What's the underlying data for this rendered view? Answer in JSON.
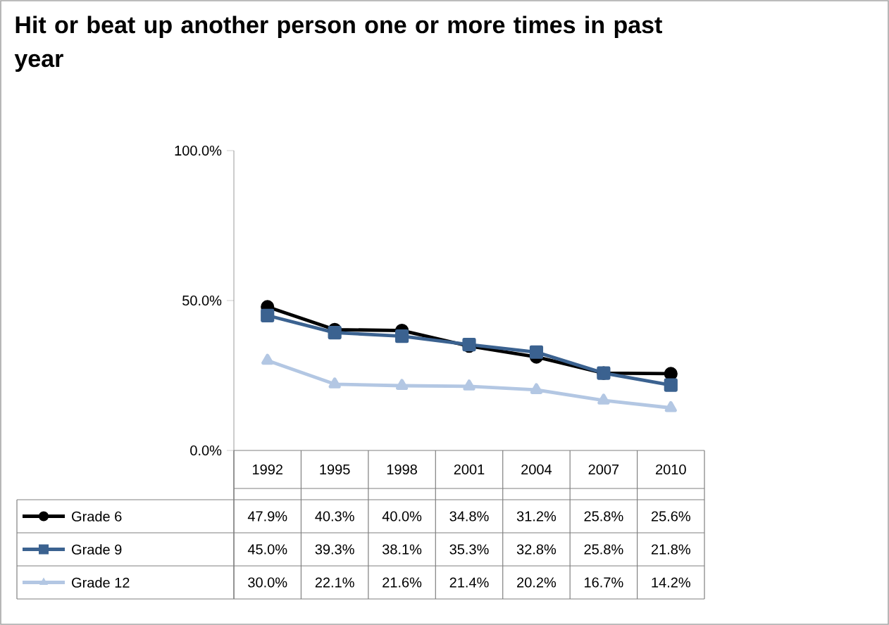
{
  "chart_data": {
    "type": "line",
    "title": "Hit or beat up another person one or more times in past year",
    "categories": [
      "1992",
      "1995",
      "1998",
      "2001",
      "2004",
      "2007",
      "2010"
    ],
    "series": [
      {
        "name": "Grade 6",
        "color": "#000000",
        "marker": "circle",
        "values": [
          47.9,
          40.3,
          40.0,
          34.8,
          31.2,
          25.8,
          25.6
        ],
        "value_labels": [
          "47.9%",
          "40.3%",
          "40.0%",
          "34.8%",
          "31.2%",
          "25.8%",
          "25.6%"
        ]
      },
      {
        "name": "Grade 9",
        "color": "#3b6290",
        "marker": "square",
        "values": [
          45.0,
          39.3,
          38.1,
          35.3,
          32.8,
          25.8,
          21.8
        ],
        "value_labels": [
          "45.0%",
          "39.3%",
          "38.1%",
          "35.3%",
          "32.8%",
          "25.8%",
          "21.8%"
        ]
      },
      {
        "name": "Grade 12",
        "color": "#b3c7e3",
        "marker": "triangle",
        "values": [
          30.0,
          22.1,
          21.6,
          21.4,
          20.2,
          16.7,
          14.2
        ],
        "value_labels": [
          "30.0%",
          "22.1%",
          "21.6%",
          "21.4%",
          "20.2%",
          "16.7%",
          "14.2%"
        ]
      }
    ],
    "ylim": [
      0,
      100
    ],
    "yticks": [
      {
        "value": 0,
        "label": "0.0%"
      },
      {
        "value": 50,
        "label": "50.0%"
      },
      {
        "value": 100,
        "label": "100.0%"
      }
    ],
    "grid": false,
    "legend": "bottom"
  }
}
